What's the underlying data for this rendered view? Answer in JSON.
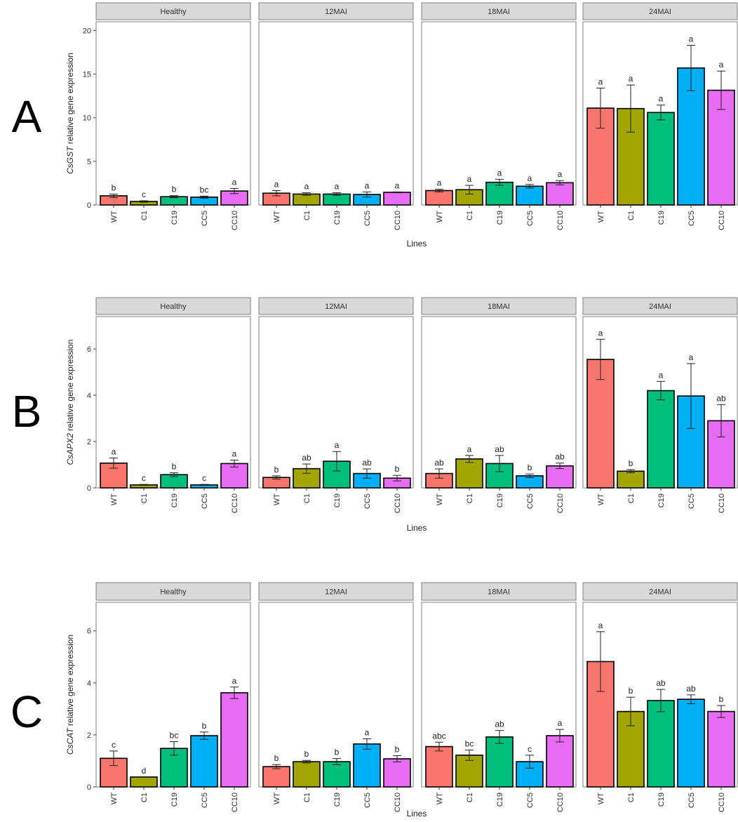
{
  "chart_data": [
    {
      "type": "bar",
      "row_label": "A",
      "ylabel": {
        "gene": "CsGST",
        "rest": " relative gene expression"
      },
      "xlabel": "Lines",
      "ylim": [
        0,
        21
      ],
      "yticks": [
        0,
        5,
        10,
        15,
        20
      ],
      "categories": [
        "WT",
        "C1",
        "C19",
        "CC5",
        "CC10"
      ],
      "panels": [
        {
          "name": "Healthy",
          "values": [
            1.05,
            0.4,
            0.95,
            0.9,
            1.6
          ],
          "errors": [
            0.2,
            0.08,
            0.12,
            0.12,
            0.3
          ],
          "letters": [
            "b",
            "c",
            "b",
            "bc",
            "a"
          ]
        },
        {
          "name": "12MAI",
          "values": [
            1.35,
            1.25,
            1.25,
            1.2,
            1.45
          ],
          "errors": [
            0.3,
            0.15,
            0.15,
            0.3,
            0.05
          ],
          "letters": [
            "a",
            "a",
            "a",
            "a",
            "a"
          ]
        },
        {
          "name": "18MAI",
          "values": [
            1.65,
            1.75,
            2.6,
            2.15,
            2.55
          ],
          "errors": [
            0.15,
            0.5,
            0.35,
            0.2,
            0.25
          ],
          "letters": [
            "a",
            "a",
            "a",
            "a",
            "a"
          ]
        },
        {
          "name": "24MAI",
          "values": [
            11.1,
            11.05,
            10.6,
            15.7,
            13.15
          ],
          "errors": [
            2.3,
            2.7,
            0.85,
            2.6,
            2.2
          ],
          "letters": [
            "a",
            "a",
            "a",
            "a",
            "a"
          ]
        }
      ]
    },
    {
      "type": "bar",
      "row_label": "B",
      "ylabel": {
        "gene": "CsAPX2",
        "rest": " relative gene expression"
      },
      "xlabel": "Lines",
      "ylim": [
        0,
        7.4
      ],
      "yticks": [
        0,
        2,
        4,
        6
      ],
      "categories": [
        "WT",
        "C1",
        "C19",
        "CC5",
        "CC10"
      ],
      "panels": [
        {
          "name": "Healthy",
          "values": [
            1.07,
            0.13,
            0.57,
            0.13,
            1.05
          ],
          "errors": [
            0.22,
            0.02,
            0.08,
            0.02,
            0.15
          ],
          "letters": [
            "a",
            "c",
            "b",
            "c",
            "a"
          ]
        },
        {
          "name": "12MAI",
          "values": [
            0.45,
            0.83,
            1.15,
            0.62,
            0.42
          ],
          "errors": [
            0.07,
            0.2,
            0.42,
            0.2,
            0.12
          ],
          "letters": [
            "b",
            "ab",
            "a",
            "ab",
            "b"
          ]
        },
        {
          "name": "18MAI",
          "values": [
            0.62,
            1.25,
            1.05,
            0.52,
            0.95
          ],
          "errors": [
            0.2,
            0.15,
            0.35,
            0.08,
            0.12
          ],
          "letters": [
            "ab",
            "a",
            "ab",
            "b",
            "ab"
          ]
        },
        {
          "name": "24MAI",
          "values": [
            5.55,
            0.72,
            4.2,
            3.97,
            2.9
          ],
          "errors": [
            0.87,
            0.07,
            0.4,
            1.4,
            0.7
          ],
          "letters": [
            "a",
            "b",
            "a",
            "a",
            "ab"
          ]
        }
      ]
    },
    {
      "type": "bar",
      "row_label": "C",
      "ylabel": {
        "gene": "CsCAT",
        "rest": " relative gene expression"
      },
      "xlabel": "Lines",
      "ylim": [
        0,
        7.1
      ],
      "yticks": [
        0,
        2,
        4,
        6
      ],
      "categories": [
        "WT",
        "C1",
        "C19",
        "CC5",
        "CC10"
      ],
      "panels": [
        {
          "name": "Healthy",
          "values": [
            1.1,
            0.38,
            1.48,
            1.97,
            3.62
          ],
          "errors": [
            0.28,
            0.0,
            0.26,
            0.14,
            0.22
          ],
          "letters": [
            "c",
            "d",
            "bc",
            "b",
            "a"
          ]
        },
        {
          "name": "12MAI",
          "values": [
            0.78,
            0.97,
            0.97,
            1.65,
            1.08
          ],
          "errors": [
            0.08,
            0.05,
            0.12,
            0.2,
            0.12
          ],
          "letters": [
            "b",
            "b",
            "b",
            "a",
            "b"
          ]
        },
        {
          "name": "18MAI",
          "values": [
            1.55,
            1.22,
            1.92,
            0.97,
            1.97
          ],
          "errors": [
            0.17,
            0.2,
            0.25,
            0.25,
            0.24
          ],
          "letters": [
            "abc",
            "bc",
            "ab",
            "c",
            "a"
          ]
        },
        {
          "name": "24MAI",
          "values": [
            4.82,
            2.9,
            3.32,
            3.37,
            2.9
          ],
          "errors": [
            1.15,
            0.55,
            0.43,
            0.17,
            0.23
          ],
          "letters": [
            "a",
            "b",
            "ab",
            "ab",
            "b"
          ]
        }
      ]
    }
  ],
  "colors": {
    "series": [
      "#F8766D",
      "#A3A500",
      "#00BF7D",
      "#00B0F6",
      "#E76BF3"
    ],
    "strip_bg": "#D9D9D9",
    "panel_border": "#7F7F7F",
    "tick": "#333333"
  }
}
